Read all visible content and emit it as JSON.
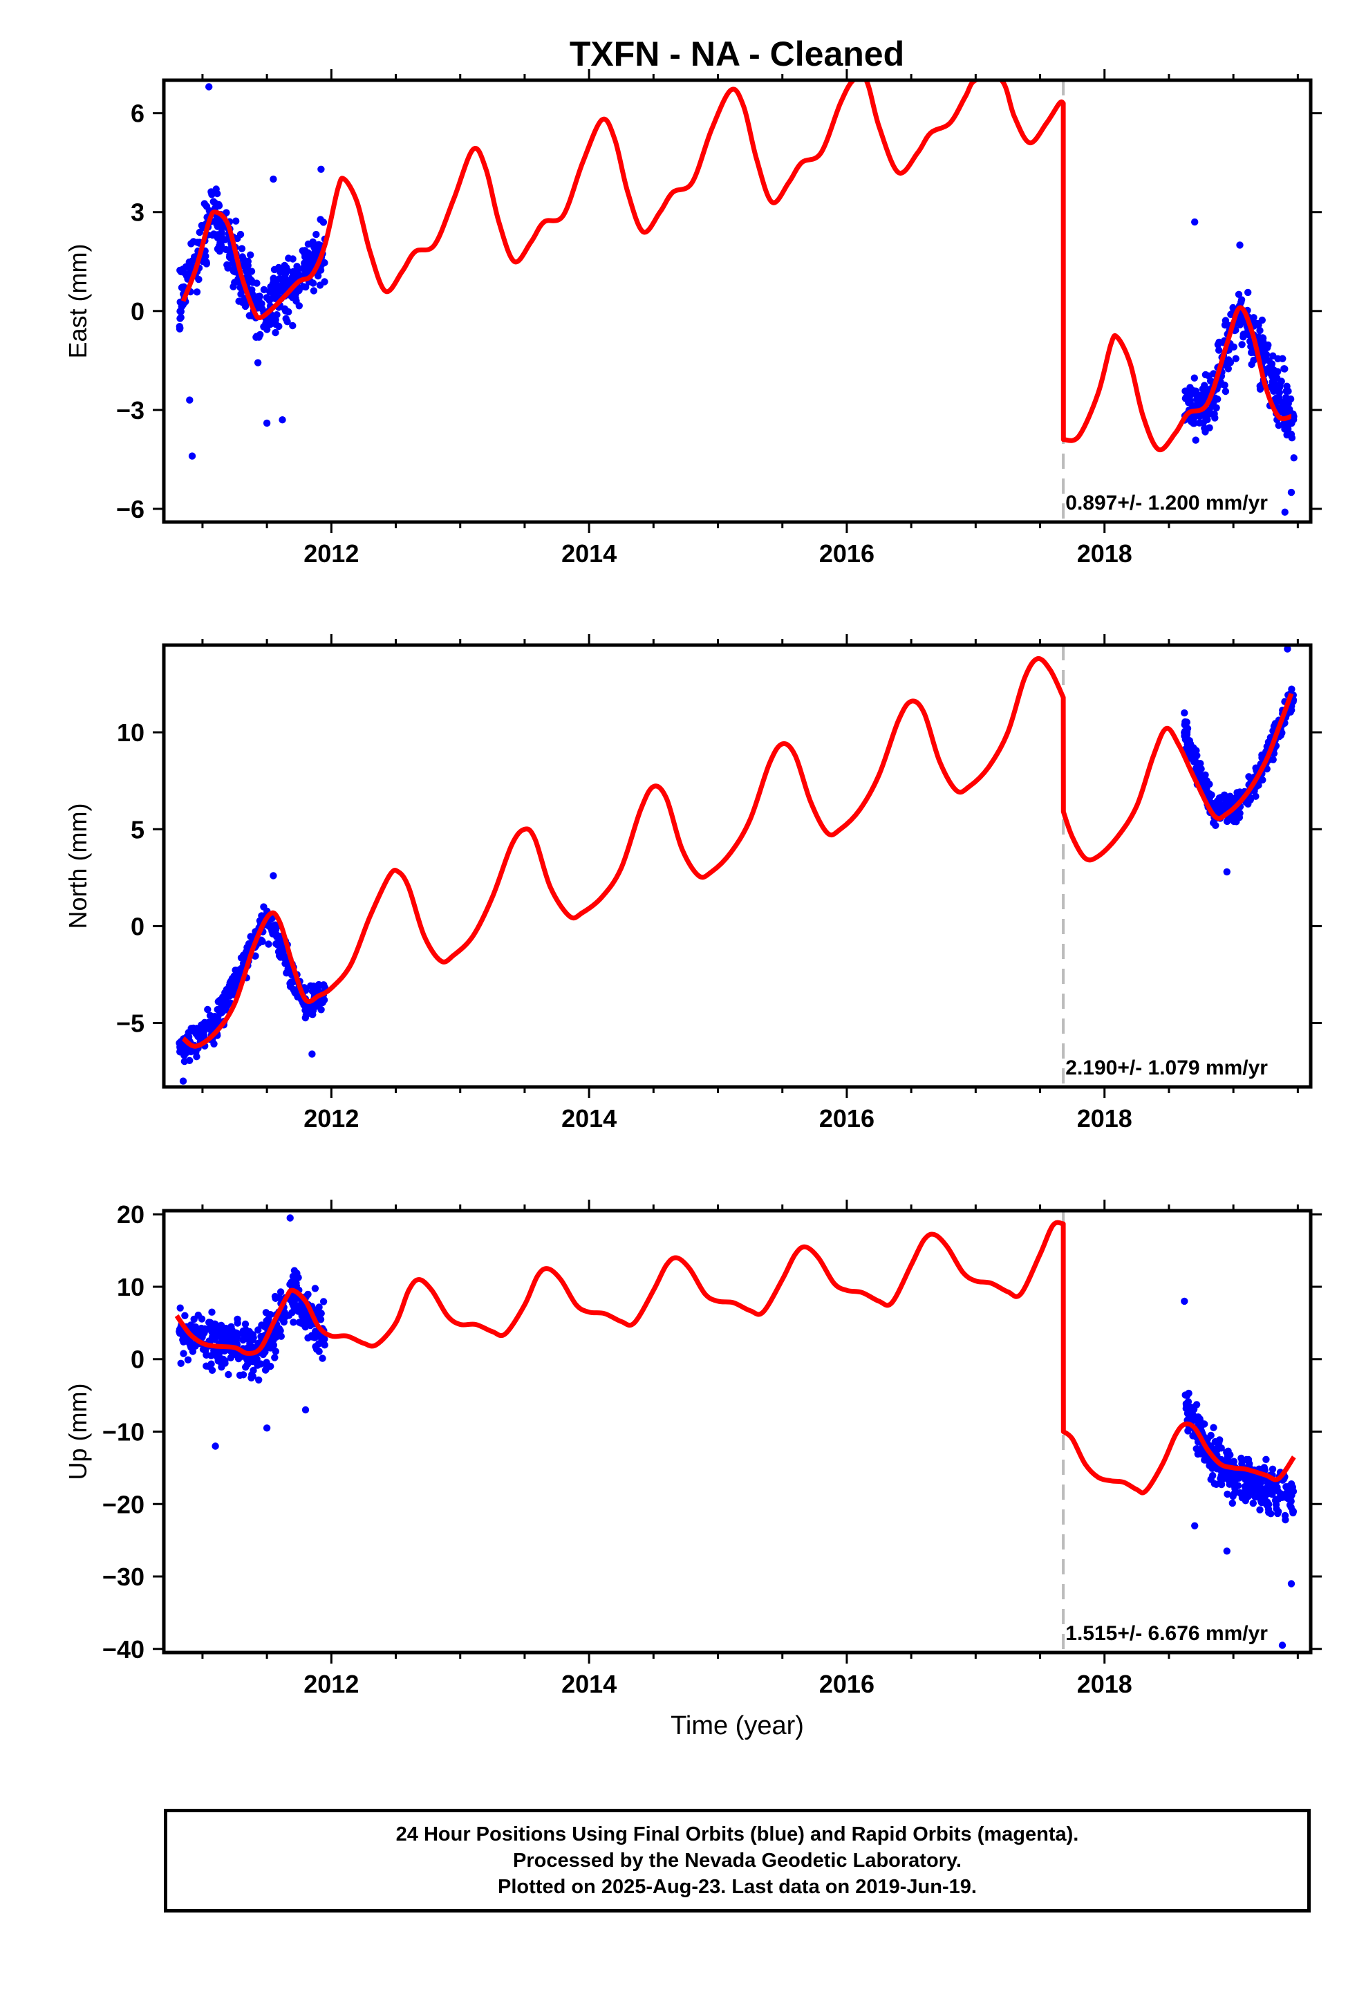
{
  "title": "TXFN  - NA - Cleaned",
  "footer": {
    "lines": [
      "24 Hour Positions Using Final Orbits (blue) and Rapid Orbits (magenta).",
      "Processed by the Nevada Geodetic Laboratory.",
      "Plotted on 2025-Aug-23. Last data on 2019-Jun-19."
    ]
  },
  "colors": {
    "points": "#0000ff",
    "model": "#ff0000",
    "step_line": "#bbbbbb",
    "axes": "#000000"
  },
  "chart_data": [
    {
      "type": "scatter",
      "name": "east",
      "ylabel": "East (mm)",
      "xlabel": "",
      "xlim": [
        2010.7,
        2019.6
      ],
      "ylim": [
        -6.4,
        7.0
      ],
      "xticks": [
        2012,
        2014,
        2016,
        2018
      ],
      "xtick_labels": [
        "2012",
        "2014",
        "2016",
        "2018"
      ],
      "yticks": [
        -6,
        -3,
        0,
        3,
        6
      ],
      "ytick_labels": [
        "−6",
        "−3",
        "0",
        "3",
        "6"
      ],
      "step_epoch": 2017.68,
      "rate_label": "0.897+/- 1.200 mm/yr",
      "model": [
        [
          2010.85,
          0.3
        ],
        [
          2010.95,
          1.3
        ],
        [
          2011.05,
          2.7
        ],
        [
          2011.1,
          3.0
        ],
        [
          2011.2,
          2.6
        ],
        [
          2011.3,
          1.1
        ],
        [
          2011.4,
          0.0
        ],
        [
          2011.45,
          -0.2
        ],
        [
          2011.55,
          0.1
        ],
        [
          2011.65,
          0.5
        ],
        [
          2011.75,
          0.9
        ],
        [
          2011.85,
          1.1
        ],
        [
          2011.95,
          2.0
        ],
        [
          2012.05,
          3.7
        ],
        [
          2012.1,
          4.0
        ],
        [
          2012.2,
          3.3
        ],
        [
          2012.3,
          1.8
        ],
        [
          2012.42,
          0.6
        ],
        [
          2012.55,
          1.2
        ],
        [
          2012.65,
          1.8
        ],
        [
          2012.8,
          2.0
        ],
        [
          2012.95,
          3.4
        ],
        [
          2013.1,
          4.9
        ],
        [
          2013.2,
          4.3
        ],
        [
          2013.3,
          2.7
        ],
        [
          2013.42,
          1.5
        ],
        [
          2013.55,
          2.1
        ],
        [
          2013.65,
          2.7
        ],
        [
          2013.8,
          2.9
        ],
        [
          2013.95,
          4.5
        ],
        [
          2014.1,
          5.8
        ],
        [
          2014.2,
          5.2
        ],
        [
          2014.3,
          3.6
        ],
        [
          2014.42,
          2.4
        ],
        [
          2014.55,
          3.0
        ],
        [
          2014.65,
          3.6
        ],
        [
          2014.8,
          3.9
        ],
        [
          2014.95,
          5.5
        ],
        [
          2015.1,
          6.7
        ],
        [
          2015.2,
          6.2
        ],
        [
          2015.3,
          4.6
        ],
        [
          2015.42,
          3.3
        ],
        [
          2015.55,
          3.9
        ],
        [
          2015.65,
          4.5
        ],
        [
          2015.8,
          4.8
        ],
        [
          2015.95,
          6.3
        ],
        [
          2016.05,
          7.0
        ],
        [
          2016.15,
          7.0
        ],
        [
          2016.25,
          5.6
        ],
        [
          2016.4,
          4.2
        ],
        [
          2016.55,
          4.8
        ],
        [
          2016.65,
          5.4
        ],
        [
          2016.8,
          5.7
        ],
        [
          2016.92,
          6.5
        ],
        [
          2017.0,
          7.0
        ],
        [
          2017.2,
          7.0
        ],
        [
          2017.3,
          5.9
        ],
        [
          2017.42,
          5.1
        ],
        [
          2017.55,
          5.7
        ],
        [
          2017.65,
          6.3
        ],
        [
          2017.68,
          6.3
        ],
        [
          2017.681,
          -3.9
        ],
        [
          2017.8,
          -3.8
        ],
        [
          2017.95,
          -2.5
        ],
        [
          2018.05,
          -1.0
        ],
        [
          2018.1,
          -0.8
        ],
        [
          2018.2,
          -1.6
        ],
        [
          2018.3,
          -3.2
        ],
        [
          2018.42,
          -4.2
        ],
        [
          2018.55,
          -3.7
        ],
        [
          2018.65,
          -3.1
        ],
        [
          2018.8,
          -2.8
        ],
        [
          2018.95,
          -1.0
        ],
        [
          2019.05,
          0.1
        ],
        [
          2019.15,
          -0.7
        ],
        [
          2019.25,
          -2.3
        ],
        [
          2019.35,
          -3.2
        ],
        [
          2019.45,
          -3.2
        ]
      ],
      "point_clusters": [
        {
          "x_start": 2010.82,
          "x_end": 2011.95,
          "centers": [
            [
              2010.82,
              0.3
            ],
            [
              2011.1,
              3.0
            ],
            [
              2011.45,
              -0.2
            ],
            [
              2011.95,
              1.8
            ]
          ],
          "spread": 1.3,
          "count": 420
        },
        {
          "x_start": 2018.62,
          "x_end": 2019.47,
          "centers": [
            [
              2018.62,
              -3.0
            ],
            [
              2018.8,
              -2.8
            ],
            [
              2019.05,
              0.0
            ],
            [
              2019.47,
              -3.4
            ]
          ],
          "spread": 1.2,
          "count": 330
        }
      ],
      "point_outliers": [
        [
          2010.92,
          -4.4
        ],
        [
          2010.9,
          -2.7
        ],
        [
          2011.5,
          -3.4
        ],
        [
          2011.62,
          -3.3
        ],
        [
          2011.05,
          6.8
        ],
        [
          2011.55,
          4.0
        ],
        [
          2011.92,
          4.3
        ],
        [
          2018.7,
          2.7
        ],
        [
          2019.05,
          2.0
        ],
        [
          2019.45,
          -5.5
        ],
        [
          2019.4,
          -6.1
        ]
      ]
    },
    {
      "type": "scatter",
      "name": "north",
      "ylabel": "North (mm)",
      "xlabel": "",
      "xlim": [
        2010.7,
        2019.6
      ],
      "ylim": [
        -8.3,
        14.5
      ],
      "xticks": [
        2012,
        2014,
        2016,
        2018
      ],
      "xtick_labels": [
        "2012",
        "2014",
        "2016",
        "2018"
      ],
      "yticks": [
        -5,
        0,
        5,
        10
      ],
      "ytick_labels": [
        "−5",
        "0",
        "5",
        "10"
      ],
      "step_epoch": 2017.68,
      "rate_label": "2.190+/- 1.079 mm/yr",
      "model": [
        [
          2010.85,
          -5.8
        ],
        [
          2010.95,
          -6.2
        ],
        [
          2011.1,
          -5.5
        ],
        [
          2011.25,
          -4.0
        ],
        [
          2011.4,
          -1.0
        ],
        [
          2011.52,
          0.6
        ],
        [
          2011.6,
          0.2
        ],
        [
          2011.7,
          -2.0
        ],
        [
          2011.8,
          -3.8
        ],
        [
          2011.9,
          -3.6
        ],
        [
          2012.0,
          -3.2
        ],
        [
          2012.15,
          -2.0
        ],
        [
          2012.3,
          0.5
        ],
        [
          2012.45,
          2.6
        ],
        [
          2012.52,
          2.8
        ],
        [
          2012.6,
          2.0
        ],
        [
          2012.72,
          -0.5
        ],
        [
          2012.85,
          -1.8
        ],
        [
          2012.95,
          -1.5
        ],
        [
          2013.1,
          -0.5
        ],
        [
          2013.25,
          1.5
        ],
        [
          2013.4,
          4.2
        ],
        [
          2013.5,
          5.0
        ],
        [
          2013.58,
          4.5
        ],
        [
          2013.7,
          2.0
        ],
        [
          2013.85,
          0.5
        ],
        [
          2013.95,
          0.7
        ],
        [
          2014.1,
          1.5
        ],
        [
          2014.25,
          3.0
        ],
        [
          2014.4,
          6.0
        ],
        [
          2014.5,
          7.2
        ],
        [
          2014.6,
          6.6
        ],
        [
          2014.72,
          4.0
        ],
        [
          2014.85,
          2.6
        ],
        [
          2014.95,
          2.8
        ],
        [
          2015.1,
          3.8
        ],
        [
          2015.25,
          5.5
        ],
        [
          2015.4,
          8.4
        ],
        [
          2015.5,
          9.4
        ],
        [
          2015.6,
          8.8
        ],
        [
          2015.72,
          6.4
        ],
        [
          2015.85,
          4.8
        ],
        [
          2015.95,
          5.0
        ],
        [
          2016.1,
          6.0
        ],
        [
          2016.25,
          7.8
        ],
        [
          2016.4,
          10.6
        ],
        [
          2016.5,
          11.6
        ],
        [
          2016.6,
          11.0
        ],
        [
          2016.72,
          8.5
        ],
        [
          2016.85,
          7.0
        ],
        [
          2016.95,
          7.2
        ],
        [
          2017.1,
          8.2
        ],
        [
          2017.25,
          10.0
        ],
        [
          2017.38,
          12.8
        ],
        [
          2017.48,
          13.8
        ],
        [
          2017.58,
          13.2
        ],
        [
          2017.68,
          11.8
        ],
        [
          2017.681,
          5.9
        ],
        [
          2017.75,
          4.6
        ],
        [
          2017.85,
          3.5
        ],
        [
          2017.95,
          3.6
        ],
        [
          2018.1,
          4.6
        ],
        [
          2018.25,
          6.2
        ],
        [
          2018.38,
          8.8
        ],
        [
          2018.48,
          10.2
        ],
        [
          2018.58,
          9.3
        ],
        [
          2018.7,
          7.6
        ],
        [
          2018.85,
          5.7
        ],
        [
          2018.95,
          5.8
        ],
        [
          2019.1,
          6.8
        ],
        [
          2019.25,
          8.5
        ],
        [
          2019.35,
          10.2
        ],
        [
          2019.45,
          12.0
        ]
      ],
      "point_clusters": [
        {
          "x_start": 2010.82,
          "x_end": 2011.95,
          "centers": [
            [
              2010.82,
              -6.3
            ],
            [
              2011.1,
              -5.0
            ],
            [
              2011.5,
              0.5
            ],
            [
              2011.8,
              -4.0
            ],
            [
              2011.95,
              -3.5
            ]
          ],
          "spread": 1.0,
          "count": 420
        },
        {
          "x_start": 2018.62,
          "x_end": 2019.47,
          "centers": [
            [
              2018.62,
              10.0
            ],
            [
              2018.85,
              5.8
            ],
            [
              2019.1,
              6.5
            ],
            [
              2019.47,
              12.0
            ]
          ],
          "spread": 1.0,
          "count": 330
        }
      ],
      "point_outliers": [
        [
          2010.85,
          -8.0
        ],
        [
          2011.55,
          2.6
        ],
        [
          2011.85,
          -6.6
        ],
        [
          2018.95,
          2.8
        ],
        [
          2019.42,
          14.3
        ],
        [
          2018.62,
          11.0
        ]
      ]
    },
    {
      "type": "scatter",
      "name": "up",
      "ylabel": "Up (mm)",
      "xlabel": "Time (year)",
      "xlim": [
        2010.7,
        2019.6
      ],
      "ylim": [
        -40.5,
        20.5
      ],
      "xticks": [
        2012,
        2014,
        2016,
        2018
      ],
      "xtick_labels": [
        "2012",
        "2014",
        "2016",
        "2018"
      ],
      "yticks": [
        -40,
        -30,
        -20,
        -10,
        0,
        10,
        20
      ],
      "ytick_labels": [
        "−40",
        "−30",
        "−20",
        "−10",
        "0",
        "10",
        "20"
      ],
      "step_epoch": 2017.68,
      "rate_label": "1.515+/- 6.676 mm/yr",
      "model": [
        [
          2010.8,
          6.0
        ],
        [
          2010.9,
          3.5
        ],
        [
          2011.0,
          2.2
        ],
        [
          2011.1,
          1.8
        ],
        [
          2011.25,
          1.6
        ],
        [
          2011.35,
          0.8
        ],
        [
          2011.45,
          1.5
        ],
        [
          2011.55,
          5.0
        ],
        [
          2011.65,
          8.5
        ],
        [
          2011.7,
          9.5
        ],
        [
          2011.8,
          8.0
        ],
        [
          2011.9,
          4.5
        ],
        [
          2012.0,
          3.2
        ],
        [
          2012.12,
          3.2
        ],
        [
          2012.25,
          2.2
        ],
        [
          2012.35,
          2.0
        ],
        [
          2012.5,
          5.0
        ],
        [
          2012.6,
          9.5
        ],
        [
          2012.68,
          11.0
        ],
        [
          2012.78,
          9.5
        ],
        [
          2012.9,
          6.0
        ],
        [
          2013.0,
          4.8
        ],
        [
          2013.12,
          4.8
        ],
        [
          2013.25,
          3.8
        ],
        [
          2013.35,
          3.5
        ],
        [
          2013.5,
          7.5
        ],
        [
          2013.6,
          11.5
        ],
        [
          2013.68,
          12.5
        ],
        [
          2013.78,
          11.0
        ],
        [
          2013.9,
          7.5
        ],
        [
          2014.0,
          6.5
        ],
        [
          2014.12,
          6.3
        ],
        [
          2014.25,
          5.2
        ],
        [
          2014.35,
          5.0
        ],
        [
          2014.5,
          9.5
        ],
        [
          2014.6,
          13.0
        ],
        [
          2014.68,
          14.0
        ],
        [
          2014.78,
          12.5
        ],
        [
          2014.9,
          9.0
        ],
        [
          2015.0,
          8.0
        ],
        [
          2015.12,
          7.8
        ],
        [
          2015.25,
          6.7
        ],
        [
          2015.35,
          6.5
        ],
        [
          2015.5,
          11.0
        ],
        [
          2015.6,
          14.5
        ],
        [
          2015.68,
          15.5
        ],
        [
          2015.78,
          14.0
        ],
        [
          2015.9,
          10.5
        ],
        [
          2016.0,
          9.5
        ],
        [
          2016.12,
          9.2
        ],
        [
          2016.25,
          8.0
        ],
        [
          2016.35,
          7.8
        ],
        [
          2016.5,
          13.0
        ],
        [
          2016.6,
          16.5
        ],
        [
          2016.68,
          17.2
        ],
        [
          2016.78,
          15.5
        ],
        [
          2016.9,
          12.0
        ],
        [
          2017.0,
          10.8
        ],
        [
          2017.12,
          10.5
        ],
        [
          2017.25,
          9.3
        ],
        [
          2017.35,
          9.0
        ],
        [
          2017.5,
          14.5
        ],
        [
          2017.6,
          18.5
        ],
        [
          2017.68,
          18.7
        ],
        [
          2017.681,
          -10.0
        ],
        [
          2017.75,
          -11.0
        ],
        [
          2017.85,
          -14.5
        ],
        [
          2017.95,
          -16.3
        ],
        [
          2018.05,
          -16.8
        ],
        [
          2018.15,
          -17.0
        ],
        [
          2018.25,
          -18.0
        ],
        [
          2018.32,
          -18.2
        ],
        [
          2018.45,
          -14.5
        ],
        [
          2018.55,
          -10.5
        ],
        [
          2018.62,
          -9.0
        ],
        [
          2018.7,
          -9.5
        ],
        [
          2018.8,
          -12.5
        ],
        [
          2018.9,
          -14.5
        ],
        [
          2019.0,
          -15.0
        ],
        [
          2019.1,
          -15.2
        ],
        [
          2019.25,
          -16.0
        ],
        [
          2019.35,
          -16.5
        ],
        [
          2019.47,
          -13.5
        ]
      ],
      "point_clusters": [
        {
          "x_start": 2010.82,
          "x_end": 2011.95,
          "centers": [
            [
              2010.82,
              4.0
            ],
            [
              2011.2,
              2.0
            ],
            [
              2011.45,
              1.0
            ],
            [
              2011.7,
              9.0
            ],
            [
              2011.95,
              3.5
            ]
          ],
          "spread": 4.5,
          "count": 420
        },
        {
          "x_start": 2018.62,
          "x_end": 2019.47,
          "centers": [
            [
              2018.62,
              -6.0
            ],
            [
              2018.85,
              -14.0
            ],
            [
              2019.1,
              -17.0
            ],
            [
              2019.47,
              -19.0
            ]
          ],
          "spread": 4.0,
          "count": 330
        }
      ],
      "point_outliers": [
        [
          2011.1,
          -12.0
        ],
        [
          2011.68,
          19.5
        ],
        [
          2011.5,
          -9.5
        ],
        [
          2011.8,
          -7.0
        ],
        [
          2018.62,
          8.0
        ],
        [
          2018.95,
          -26.5
        ],
        [
          2019.45,
          -31.0
        ],
        [
          2019.38,
          -39.5
        ],
        [
          2018.7,
          -23.0
        ]
      ]
    }
  ]
}
